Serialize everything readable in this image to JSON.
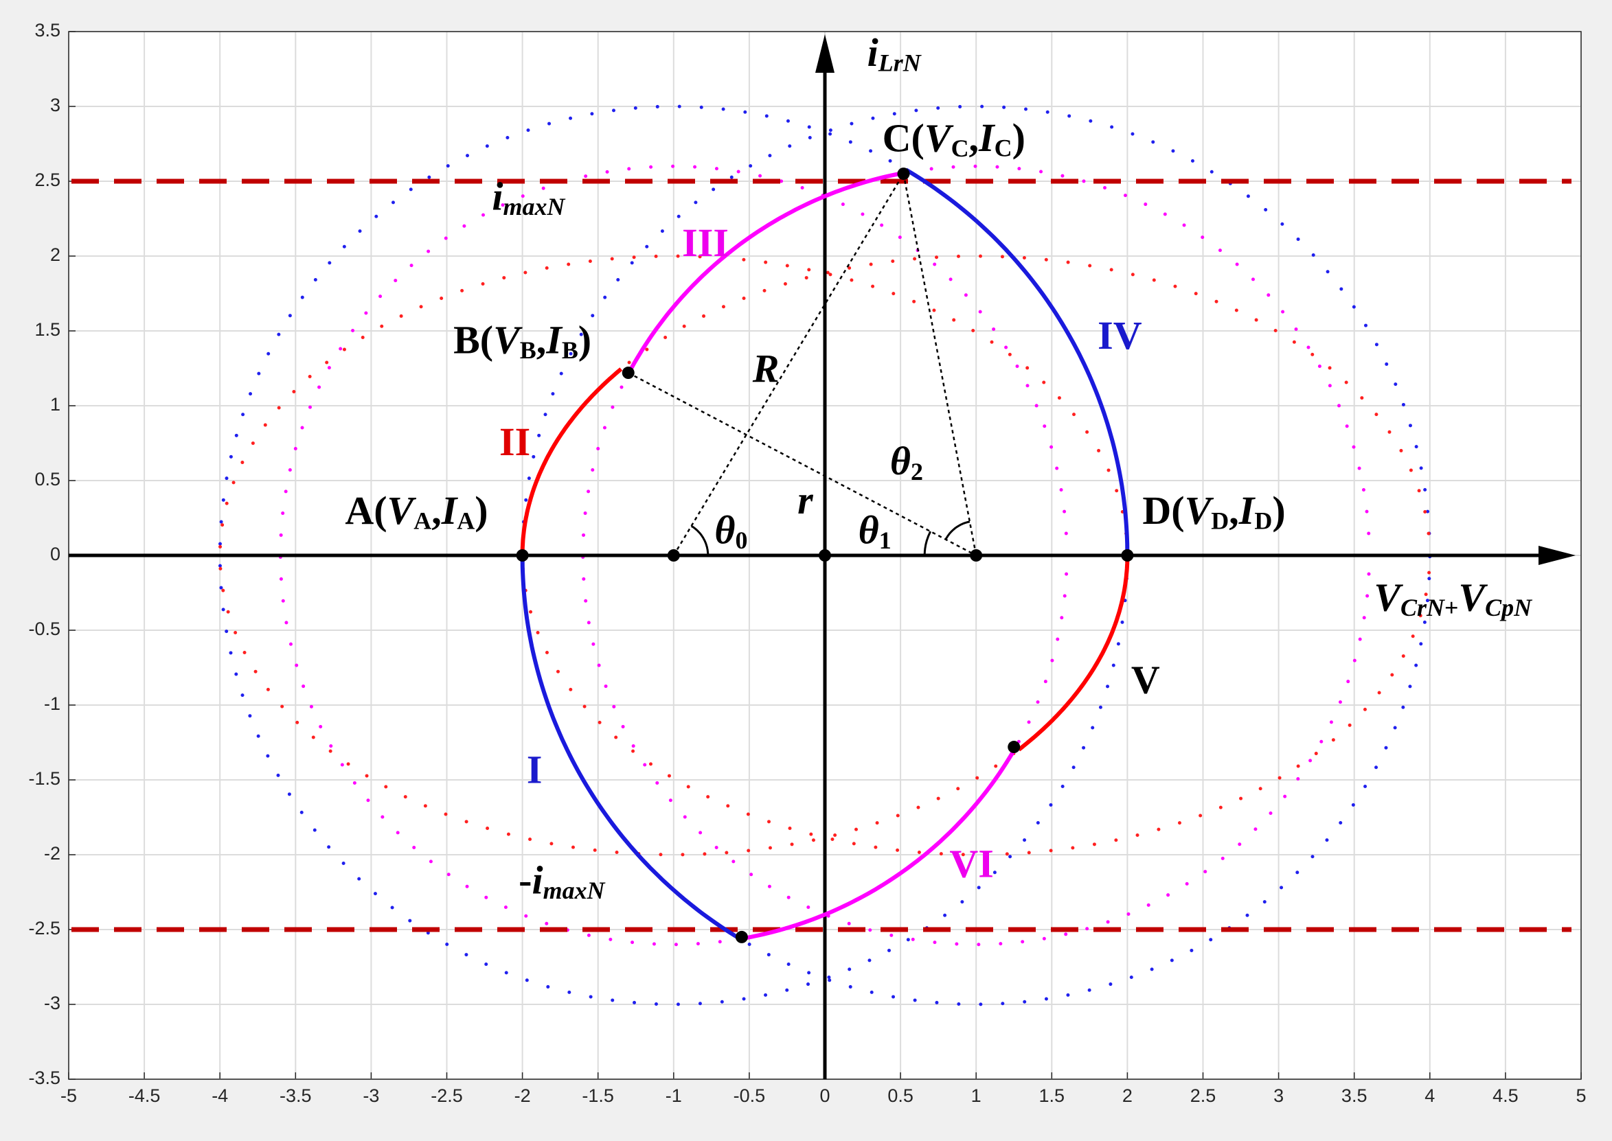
{
  "chart_data": {
    "type": "phase-plane",
    "xlim": [
      -5,
      5
    ],
    "ylim": [
      -3.5,
      3.5
    ],
    "xticks": [
      -5,
      -4.5,
      -4,
      -3.5,
      -3,
      -2.5,
      -2,
      -1.5,
      -1,
      -0.5,
      0,
      0.5,
      1,
      1.5,
      2,
      2.5,
      3,
      3.5,
      4,
      4.5,
      5
    ],
    "yticks": [
      -3.5,
      -3,
      -2.5,
      -2,
      -1.5,
      -1,
      -0.5,
      0,
      0.5,
      1,
      1.5,
      2,
      2.5,
      3,
      3.5
    ],
    "grid": true,
    "x_label": {
      "parts": [
        {
          "text": "V",
          "style": "italic"
        },
        {
          "text": "CrN",
          "style": "italic-sub"
        },
        {
          "text": "+",
          "style": "sub"
        },
        {
          "text": "V",
          "style": "italic"
        },
        {
          "text": "CpN",
          "style": "italic-sub"
        }
      ]
    },
    "y_label": {
      "parts": [
        {
          "text": "i",
          "style": "italic"
        },
        {
          "text": "LrN",
          "style": "italic-sub"
        }
      ]
    },
    "rings": [
      {
        "color": "#2020ee",
        "cx": -1,
        "cy": 0,
        "rx": 3,
        "ry": 3
      },
      {
        "color": "#2020ee",
        "cx": 1,
        "cy": 0,
        "rx": 3,
        "ry": 3
      },
      {
        "color": "#ff00ff",
        "cx": -1,
        "cy": 0,
        "rx": 2.6,
        "ry": 2.6
      },
      {
        "color": "#ff00ff",
        "cx": 1,
        "cy": 0,
        "rx": 2.6,
        "ry": 2.6
      },
      {
        "color": "#ff2020",
        "cx": -1,
        "cy": 0,
        "rx": 3,
        "ry": 2
      },
      {
        "color": "#ff2020",
        "cx": 1,
        "cy": 0,
        "rx": 3,
        "ry": 2
      }
    ],
    "limit_lines": {
      "color": "#c00000",
      "values": [
        2.5,
        -2.5
      ]
    },
    "arcs": [
      {
        "color": "#1a1add",
        "cx": 1,
        "cy": 0,
        "rx": 3,
        "ry": 3,
        "start": [
          -2,
          0
        ],
        "end": [
          -0.55,
          -2.55
        ]
      },
      {
        "color": "#ff00ff",
        "cx": -1,
        "cy": 0,
        "rx": 2.6,
        "ry": 2.6,
        "start": [
          -0.55,
          -2.55
        ],
        "end": [
          1.25,
          -1.28
        ]
      },
      {
        "color": "#ff0000",
        "cx": -1,
        "cy": 0,
        "rx": 3,
        "ry": 2,
        "start": [
          1.25,
          -1.28
        ],
        "end": [
          2,
          0
        ]
      },
      {
        "color": "#1a1add",
        "cx": -1,
        "cy": 0,
        "rx": 3,
        "ry": 3,
        "start": [
          2,
          0
        ],
        "end": [
          0.52,
          2.55
        ]
      },
      {
        "color": "#ff00ff",
        "cx": 1,
        "cy": 0,
        "rx": 2.6,
        "ry": 2.6,
        "start": [
          0.52,
          2.55
        ],
        "end": [
          -1.3,
          1.22
        ]
      },
      {
        "color": "#ff0000",
        "cx": 1,
        "cy": 0,
        "rx": 3,
        "ry": 2,
        "start": [
          -1.3,
          1.22
        ],
        "end": [
          -2,
          0
        ]
      }
    ],
    "guides": [
      {
        "from": [
          -1,
          0
        ],
        "to": [
          0.52,
          2.55
        ]
      },
      {
        "from": [
          -1.3,
          1.22
        ],
        "to": [
          1,
          0
        ]
      },
      {
        "from": [
          0.52,
          2.55
        ],
        "to": [
          1,
          0
        ]
      }
    ],
    "points": [
      {
        "x": -2,
        "y": 0
      },
      {
        "x": -1.3,
        "y": 1.22
      },
      {
        "x": 0.52,
        "y": 2.55
      },
      {
        "x": 2,
        "y": 0
      },
      {
        "x": 1.25,
        "y": -1.28
      },
      {
        "x": -0.55,
        "y": -2.55
      },
      {
        "x": -1,
        "y": 0
      },
      {
        "x": 0,
        "y": 0
      },
      {
        "x": 1,
        "y": 0
      }
    ],
    "annotations": [
      {
        "color": "#000000",
        "parts": [
          "C(",
          {
            "text": "V",
            "style": "italic"
          },
          {
            "text": "C",
            "style": "sub"
          },
          ",",
          {
            "text": "I",
            "style": "italic"
          },
          {
            "text": "C",
            "style": "sub"
          },
          ")"
        ]
      },
      {
        "color": "#000000",
        "parts": [
          {
            "text": "i",
            "style": "italic"
          },
          {
            "text": "maxN",
            "style": "italic-sub"
          }
        ]
      },
      {
        "color": "#ee00ee",
        "parts": [
          "III"
        ]
      },
      {
        "color": "#000000",
        "parts": [
          "B(",
          {
            "text": "V",
            "style": "italic"
          },
          {
            "text": "B",
            "style": "sub"
          },
          ",",
          {
            "text": "I",
            "style": "italic"
          },
          {
            "text": "B",
            "style": "sub"
          },
          ")"
        ]
      },
      {
        "color": "#1a1acc",
        "parts": [
          "IV"
        ]
      },
      {
        "color": "#000000",
        "parts": [
          {
            "text": "R",
            "style": "italic"
          }
        ]
      },
      {
        "color": "#e00000",
        "parts": [
          "II"
        ]
      },
      {
        "color": "#000000",
        "parts": [
          {
            "text": "θ",
            "style": "italic"
          },
          {
            "text": "2",
            "style": "sub"
          }
        ]
      },
      {
        "color": "#000000",
        "parts": [
          {
            "text": "r",
            "style": "italic"
          }
        ]
      },
      {
        "color": "#000000",
        "parts": [
          "A(",
          {
            "text": "V",
            "style": "italic"
          },
          {
            "text": "A",
            "style": "sub"
          },
          ",",
          {
            "text": "I",
            "style": "italic"
          },
          {
            "text": "A",
            "style": "sub"
          },
          ")"
        ]
      },
      {
        "color": "#000000",
        "parts": [
          {
            "text": "θ",
            "style": "italic"
          },
          {
            "text": "0",
            "style": "sub"
          }
        ]
      },
      {
        "color": "#000000",
        "parts": [
          {
            "text": "θ",
            "style": "italic"
          },
          {
            "text": "1",
            "style": "sub"
          }
        ]
      },
      {
        "color": "#000000",
        "parts": [
          "D(",
          {
            "text": "V",
            "style": "italic"
          },
          {
            "text": "D",
            "style": "sub"
          },
          ",",
          {
            "text": "I",
            "style": "italic"
          },
          {
            "text": "D",
            "style": "sub"
          },
          ")"
        ]
      },
      {
        "color": "#000000",
        "parts": [
          "V"
        ]
      },
      {
        "color": "#1a1acc",
        "parts": [
          "I"
        ]
      },
      {
        "color": "#ee00ee",
        "parts": [
          "VI"
        ]
      },
      {
        "color": "#000000",
        "parts": [
          "-",
          {
            "text": "i",
            "style": "italic"
          },
          {
            "text": "maxN",
            "style": "italic-sub"
          }
        ]
      }
    ]
  }
}
